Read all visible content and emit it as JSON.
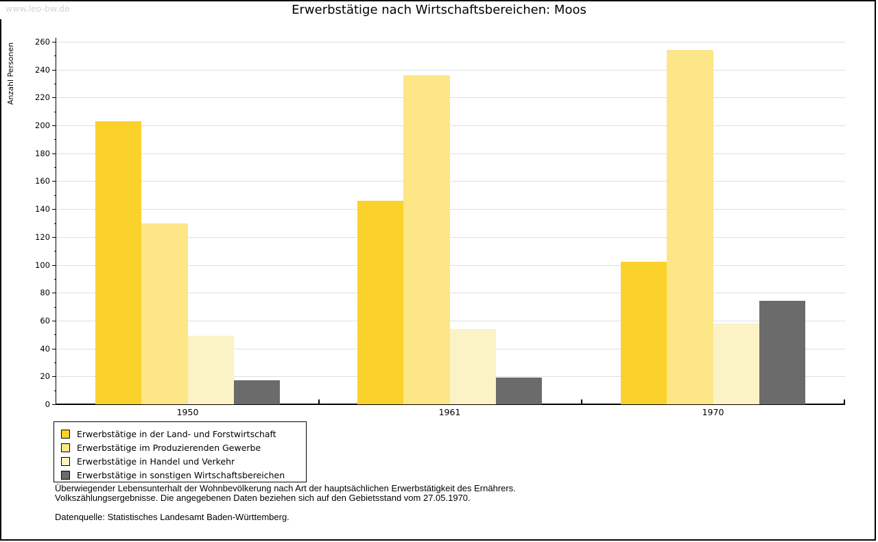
{
  "watermark": "www.leo-bw.de",
  "title": "Erwerbstätige nach Wirtschaftsbereichen: Moos",
  "chart_data": {
    "type": "bar",
    "title": "Erwerbstätige nach Wirtschaftsbereichen: Moos",
    "xlabel": "",
    "ylabel": "Anzahl Personen",
    "ylim": [
      0,
      260
    ],
    "ytick_step": 20,
    "minor_tick_step": 10,
    "grid": true,
    "legend_position": "bottom-left",
    "categories": [
      "1950",
      "1961",
      "1970"
    ],
    "series": [
      {
        "name": "Erwerbstätige in der Land- und Forstwirtschaft",
        "color": "#FBD22B",
        "values": [
          203,
          146,
          102
        ]
      },
      {
        "name": "Erwerbstätige im Produzierenden Gewerbe",
        "color": "#FCE687",
        "values": [
          130,
          236,
          254
        ]
      },
      {
        "name": "Erwerbstätige in Handel und Verkehr",
        "color": "#FBF2C6",
        "values": [
          49,
          54,
          58
        ]
      },
      {
        "name": "Erwerbstätige in sonstigen Wirtschaftsbereichen",
        "color": "#6B6B6B",
        "values": [
          17,
          19,
          74
        ]
      }
    ]
  },
  "footer": {
    "line1": "Überwiegender Lebensunterhalt der Wohnbevölkerung nach Art der hauptsächlichen Erwerbstätigkeit des Ernährers.",
    "line2": "Volkszählungsergebnisse. Die angegebenen Daten beziehen sich auf den Gebietsstand vom 27.05.1970.",
    "source": "Datenquelle: Statistisches Landesamt Baden-Württemberg."
  },
  "colors": {
    "grid": "#DEDEDE",
    "axis": "#000000",
    "watermark": "#D3D3D3",
    "background": "#FFFFFF"
  }
}
